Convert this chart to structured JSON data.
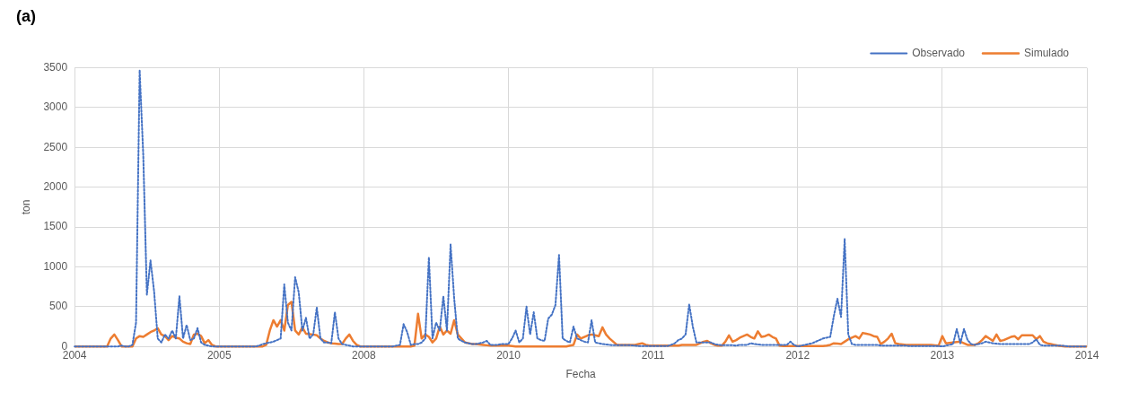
{
  "chart_data": {
    "type": "line",
    "title": "(a)",
    "xlabel": "Fecha",
    "ylabel": "ton",
    "categories": [
      "2004",
      null,
      null,
      null,
      null,
      null,
      null,
      null,
      null,
      null,
      null,
      null,
      null,
      null,
      null,
      null,
      null,
      null,
      null,
      null,
      null,
      null,
      null,
      null,
      null,
      null,
      null,
      null,
      null,
      null,
      null,
      null,
      null,
      null,
      null,
      null,
      null,
      null,
      null,
      null,
      "2005",
      null,
      null,
      null,
      null,
      null,
      null,
      null,
      null,
      null,
      null,
      null,
      null,
      null,
      null,
      null,
      null,
      null,
      null,
      null,
      null,
      null,
      null,
      null,
      null,
      null,
      null,
      null,
      null,
      null,
      null,
      null,
      null,
      null,
      null,
      null,
      null,
      null,
      null,
      null,
      "2008",
      null,
      null,
      null,
      null,
      null,
      null,
      null,
      null,
      null,
      null,
      null,
      null,
      null,
      null,
      null,
      null,
      null,
      null,
      null,
      null,
      null,
      null,
      null,
      null,
      null,
      null,
      null,
      null,
      null,
      null,
      null,
      null,
      null,
      null,
      null,
      null,
      null,
      null,
      null,
      "2010",
      null,
      null,
      null,
      null,
      null,
      null,
      null,
      null,
      null,
      null,
      null,
      null,
      null,
      null,
      null,
      null,
      null,
      null,
      null,
      null,
      null,
      null,
      null,
      null,
      null,
      null,
      null,
      null,
      null,
      null,
      null,
      null,
      null,
      null,
      null,
      null,
      null,
      null,
      null,
      "2011",
      null,
      null,
      null,
      null,
      null,
      null,
      null,
      null,
      null,
      null,
      null,
      null,
      null,
      null,
      null,
      null,
      null,
      null,
      null,
      null,
      null,
      null,
      null,
      null,
      null,
      null,
      null,
      null,
      null,
      null,
      null,
      null,
      null,
      null,
      null,
      null,
      null,
      null,
      null,
      "2012",
      null,
      null,
      null,
      null,
      null,
      null,
      null,
      null,
      null,
      null,
      null,
      null,
      null,
      null,
      null,
      null,
      null,
      null,
      null,
      null,
      null,
      null,
      null,
      null,
      null,
      null,
      null,
      null,
      null,
      null,
      null,
      null,
      null,
      null,
      null,
      null,
      null,
      null,
      null,
      "2013",
      null,
      null,
      null,
      null,
      null,
      null,
      null,
      null,
      null,
      null,
      null,
      null,
      null,
      null,
      null,
      null,
      null,
      null,
      null,
      null,
      null,
      null,
      null,
      null,
      null,
      null,
      null,
      null,
      null,
      null,
      null,
      null,
      null,
      null,
      null,
      null,
      null,
      null,
      null,
      "2014"
    ],
    "ylim": [
      0,
      3500
    ],
    "yticks": [
      0,
      500,
      1000,
      1500,
      2000,
      2500,
      3000,
      3500
    ],
    "grid": true,
    "legend": "top right",
    "marker": "none",
    "series": [
      {
        "name": "Observado",
        "color": "#4472c4",
        "line_style": "dotted",
        "values": [
          0,
          0,
          0,
          0,
          0,
          0,
          0,
          0,
          0,
          0,
          0,
          0,
          0,
          10,
          0,
          0,
          20,
          300,
          3470,
          2400,
          650,
          1080,
          690,
          100,
          50,
          150,
          100,
          200,
          100,
          630,
          100,
          270,
          80,
          100,
          230,
          50,
          20,
          10,
          0,
          0,
          0,
          0,
          0,
          0,
          0,
          0,
          0,
          0,
          0,
          0,
          0,
          10,
          30,
          40,
          50,
          60,
          80,
          100,
          780,
          300,
          200,
          870,
          680,
          200,
          360,
          100,
          150,
          490,
          100,
          50,
          50,
          40,
          430,
          100,
          30,
          20,
          10,
          0,
          0,
          0,
          0,
          0,
          0,
          0,
          0,
          0,
          0,
          0,
          0,
          10,
          20,
          280,
          180,
          20,
          30,
          30,
          50,
          100,
          1120,
          100,
          300,
          200,
          630,
          200,
          1280,
          600,
          100,
          70,
          50,
          40,
          30,
          30,
          40,
          50,
          70,
          20,
          20,
          20,
          30,
          30,
          30,
          100,
          200,
          50,
          100,
          500,
          150,
          430,
          100,
          80,
          70,
          350,
          400,
          520,
          1150,
          100,
          70,
          50,
          250,
          100,
          80,
          60,
          50,
          330,
          50,
          40,
          30,
          25,
          20,
          15,
          15,
          15,
          15,
          15,
          15,
          10,
          5,
          5,
          5,
          5,
          5,
          5,
          5,
          5,
          5,
          20,
          40,
          80,
          100,
          150,
          530,
          250,
          50,
          50,
          50,
          50,
          50,
          30,
          20,
          15,
          15,
          15,
          15,
          10,
          20,
          20,
          20,
          40,
          30,
          25,
          20,
          20,
          20,
          20,
          20,
          20,
          20,
          20,
          60,
          20,
          0,
          10,
          20,
          30,
          40,
          60,
          80,
          100,
          110,
          120,
          380,
          600,
          370,
          1350,
          150,
          30,
          20,
          20,
          20,
          20,
          20,
          20,
          20,
          10,
          10,
          10,
          10,
          10,
          10,
          10,
          10,
          5,
          5,
          5,
          5,
          5,
          5,
          5,
          5,
          5,
          0,
          10,
          20,
          30,
          220,
          40,
          220,
          80,
          30,
          20,
          30,
          40,
          60,
          50,
          40,
          35,
          30,
          30,
          30,
          30,
          30,
          30,
          30,
          30,
          30,
          50,
          90,
          20,
          10,
          10,
          10,
          10,
          10,
          10,
          5,
          0,
          0,
          0,
          0,
          0,
          0
        ]
      },
      {
        "name": "Simulado",
        "color": "#ed7d31",
        "line_style": "solid",
        "values": [
          0,
          0,
          0,
          0,
          0,
          0,
          0,
          0,
          0,
          0,
          100,
          150,
          80,
          0,
          0,
          0,
          0,
          100,
          130,
          120,
          150,
          180,
          200,
          230,
          150,
          130,
          80,
          130,
          110,
          100,
          60,
          40,
          30,
          150,
          160,
          130,
          40,
          80,
          20,
          0,
          0,
          0,
          0,
          0,
          0,
          0,
          0,
          0,
          0,
          0,
          0,
          0,
          0,
          20,
          200,
          330,
          250,
          330,
          200,
          520,
          560,
          200,
          150,
          240,
          160,
          155,
          150,
          140,
          100,
          70,
          50,
          40,
          35,
          30,
          30,
          100,
          150,
          70,
          20,
          0,
          0,
          0,
          0,
          0,
          0,
          0,
          0,
          0,
          0,
          0,
          0,
          0,
          0,
          0,
          10,
          410,
          100,
          150,
          120,
          50,
          100,
          250,
          150,
          200,
          160,
          330,
          150,
          100,
          50,
          40,
          30,
          30,
          25,
          20,
          15,
          10,
          10,
          10,
          10,
          10,
          10,
          5,
          0,
          0,
          0,
          0,
          0,
          0,
          0,
          0,
          0,
          0,
          0,
          0,
          0,
          0,
          0,
          10,
          20,
          150,
          100,
          120,
          140,
          150,
          140,
          130,
          240,
          150,
          100,
          60,
          20,
          20,
          20,
          20,
          20,
          20,
          30,
          40,
          20,
          10,
          10,
          10,
          10,
          10,
          10,
          10,
          10,
          10,
          20,
          20,
          20,
          20,
          20,
          40,
          60,
          70,
          40,
          20,
          10,
          10,
          60,
          140,
          60,
          80,
          110,
          130,
          150,
          120,
          100,
          190,
          120,
          130,
          150,
          120,
          100,
          10,
          5,
          5,
          5,
          5,
          5,
          5,
          5,
          5,
          5,
          5,
          5,
          5,
          10,
          20,
          40,
          35,
          30,
          60,
          90,
          110,
          130,
          100,
          170,
          160,
          150,
          130,
          120,
          30,
          60,
          100,
          160,
          40,
          30,
          25,
          20,
          20,
          20,
          20,
          20,
          20,
          20,
          20,
          15,
          10,
          130,
          40,
          45,
          50,
          55,
          60,
          40,
          20,
          20,
          20,
          40,
          80,
          130,
          100,
          70,
          150,
          70,
          80,
          100,
          120,
          130,
          90,
          140,
          140,
          140,
          140,
          90,
          130,
          60,
          40,
          30,
          20,
          10,
          5,
          0,
          0,
          0,
          0,
          0,
          0,
          0
        ]
      }
    ]
  }
}
